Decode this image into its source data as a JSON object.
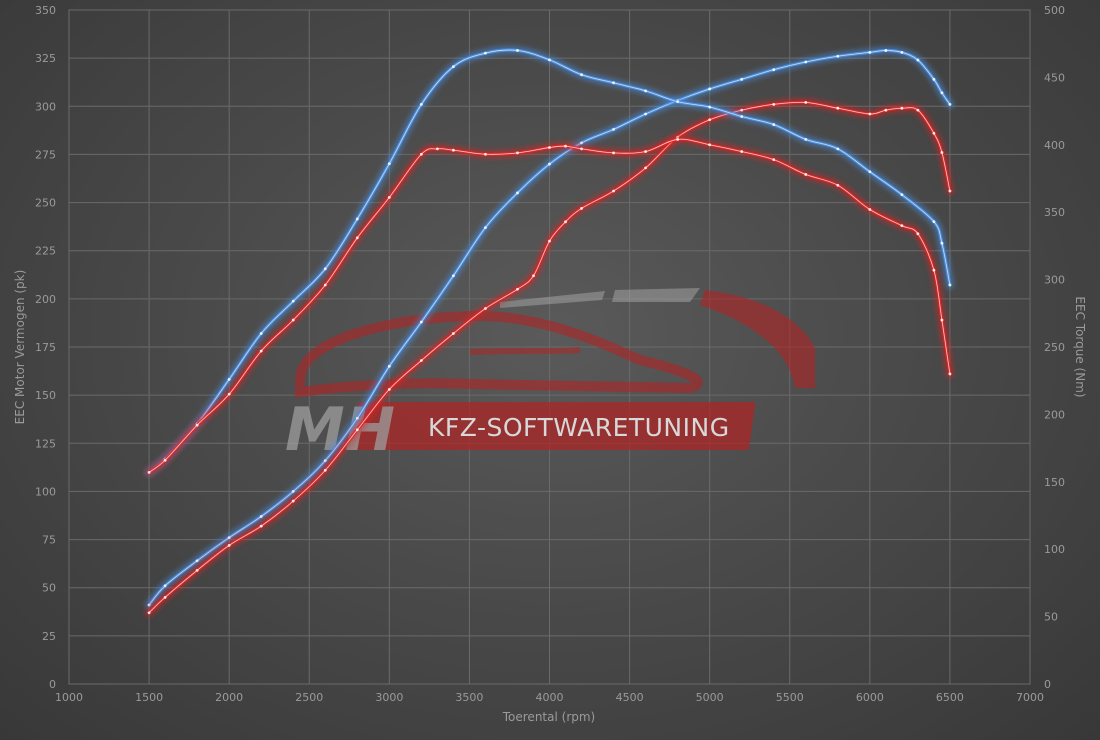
{
  "chart_data": {
    "type": "line",
    "title": "",
    "xlabel": "Toerental (rpm)",
    "ylabel_left": "EEC Motor Vermogen (pk)",
    "ylabel_right": "EEC Torque (Nm)",
    "xlim": [
      1000,
      7000
    ],
    "ylim_left": [
      0,
      350
    ],
    "ylim_right": [
      0,
      500
    ],
    "x_ticks": [
      1000,
      1500,
      2000,
      2500,
      3000,
      3500,
      4000,
      4500,
      5000,
      5500,
      6000,
      6500,
      7000
    ],
    "y_ticks_left": [
      0,
      25,
      50,
      75,
      100,
      125,
      150,
      175,
      200,
      225,
      250,
      275,
      300,
      325,
      350
    ],
    "y_ticks_right": [
      0,
      50,
      100,
      150,
      200,
      250,
      300,
      350,
      400,
      450,
      500
    ],
    "grid": true,
    "legend": "none",
    "series": [
      {
        "axis": "left",
        "color": "#4a90e2",
        "points": [
          [
            1500,
            41
          ],
          [
            1600,
            51
          ],
          [
            1800,
            64
          ],
          [
            2000,
            76
          ],
          [
            2200,
            87
          ],
          [
            2400,
            100
          ],
          [
            2600,
            116
          ],
          [
            2800,
            138
          ],
          [
            3000,
            165
          ],
          [
            3200,
            188
          ],
          [
            3400,
            212
          ],
          [
            3600,
            237
          ],
          [
            3800,
            255
          ],
          [
            4000,
            270
          ],
          [
            4200,
            281
          ],
          [
            4400,
            288
          ],
          [
            4600,
            296
          ],
          [
            4800,
            303
          ],
          [
            5000,
            309
          ],
          [
            5200,
            314
          ],
          [
            5400,
            319
          ],
          [
            5600,
            323
          ],
          [
            5800,
            326
          ],
          [
            6000,
            328
          ],
          [
            6100,
            329
          ],
          [
            6200,
            328
          ],
          [
            6300,
            324
          ],
          [
            6400,
            314
          ],
          [
            6450,
            307
          ],
          [
            6500,
            301
          ]
        ]
      },
      {
        "axis": "left",
        "color": "#e02424",
        "points": [
          [
            1500,
            37
          ],
          [
            1600,
            45
          ],
          [
            1800,
            59
          ],
          [
            2000,
            72
          ],
          [
            2200,
            82
          ],
          [
            2400,
            95
          ],
          [
            2600,
            111
          ],
          [
            2800,
            132
          ],
          [
            3000,
            153
          ],
          [
            3200,
            168
          ],
          [
            3400,
            182
          ],
          [
            3600,
            195
          ],
          [
            3800,
            205
          ],
          [
            3900,
            212
          ],
          [
            4000,
            230
          ],
          [
            4100,
            240
          ],
          [
            4200,
            247
          ],
          [
            4400,
            256
          ],
          [
            4600,
            268
          ],
          [
            4800,
            284
          ],
          [
            5000,
            293
          ],
          [
            5200,
            298
          ],
          [
            5400,
            301
          ],
          [
            5600,
            302
          ],
          [
            5800,
            299
          ],
          [
            6000,
            296
          ],
          [
            6100,
            298
          ],
          [
            6200,
            299
          ],
          [
            6300,
            298
          ],
          [
            6400,
            286
          ],
          [
            6450,
            276
          ],
          [
            6500,
            256
          ]
        ]
      },
      {
        "axis": "right",
        "color": "#4a90e2",
        "points": [
          [
            1500,
            157
          ],
          [
            1600,
            167
          ],
          [
            1800,
            193
          ],
          [
            2000,
            226
          ],
          [
            2200,
            260
          ],
          [
            2400,
            284
          ],
          [
            2600,
            308
          ],
          [
            2800,
            345
          ],
          [
            3000,
            386
          ],
          [
            3200,
            430
          ],
          [
            3400,
            458
          ],
          [
            3600,
            468
          ],
          [
            3800,
            470
          ],
          [
            4000,
            463
          ],
          [
            4200,
            452
          ],
          [
            4400,
            446
          ],
          [
            4600,
            440
          ],
          [
            4800,
            432
          ],
          [
            5000,
            428
          ],
          [
            5200,
            421
          ],
          [
            5400,
            415
          ],
          [
            5600,
            404
          ],
          [
            5800,
            397
          ],
          [
            6000,
            380
          ],
          [
            6200,
            363
          ],
          [
            6400,
            343
          ],
          [
            6450,
            327
          ],
          [
            6500,
            296
          ]
        ]
      },
      {
        "axis": "right",
        "color": "#e02424",
        "points": [
          [
            1500,
            157
          ],
          [
            1600,
            166
          ],
          [
            1800,
            192
          ],
          [
            2000,
            215
          ],
          [
            2200,
            247
          ],
          [
            2400,
            270
          ],
          [
            2600,
            296
          ],
          [
            2800,
            331
          ],
          [
            3000,
            361
          ],
          [
            3200,
            393
          ],
          [
            3300,
            397
          ],
          [
            3400,
            396
          ],
          [
            3600,
            393
          ],
          [
            3800,
            394
          ],
          [
            4000,
            398
          ],
          [
            4100,
            399
          ],
          [
            4200,
            397
          ],
          [
            4400,
            394
          ],
          [
            4600,
            395
          ],
          [
            4800,
            404
          ],
          [
            5000,
            400
          ],
          [
            5200,
            395
          ],
          [
            5400,
            389
          ],
          [
            5600,
            378
          ],
          [
            5800,
            370
          ],
          [
            6000,
            352
          ],
          [
            6200,
            340
          ],
          [
            6300,
            334
          ],
          [
            6400,
            307
          ],
          [
            6450,
            270
          ],
          [
            6500,
            230
          ]
        ]
      }
    ]
  },
  "watermark": {
    "brand_short": "MH",
    "brand_long": "KFZ-SOFTWARETUNING"
  }
}
